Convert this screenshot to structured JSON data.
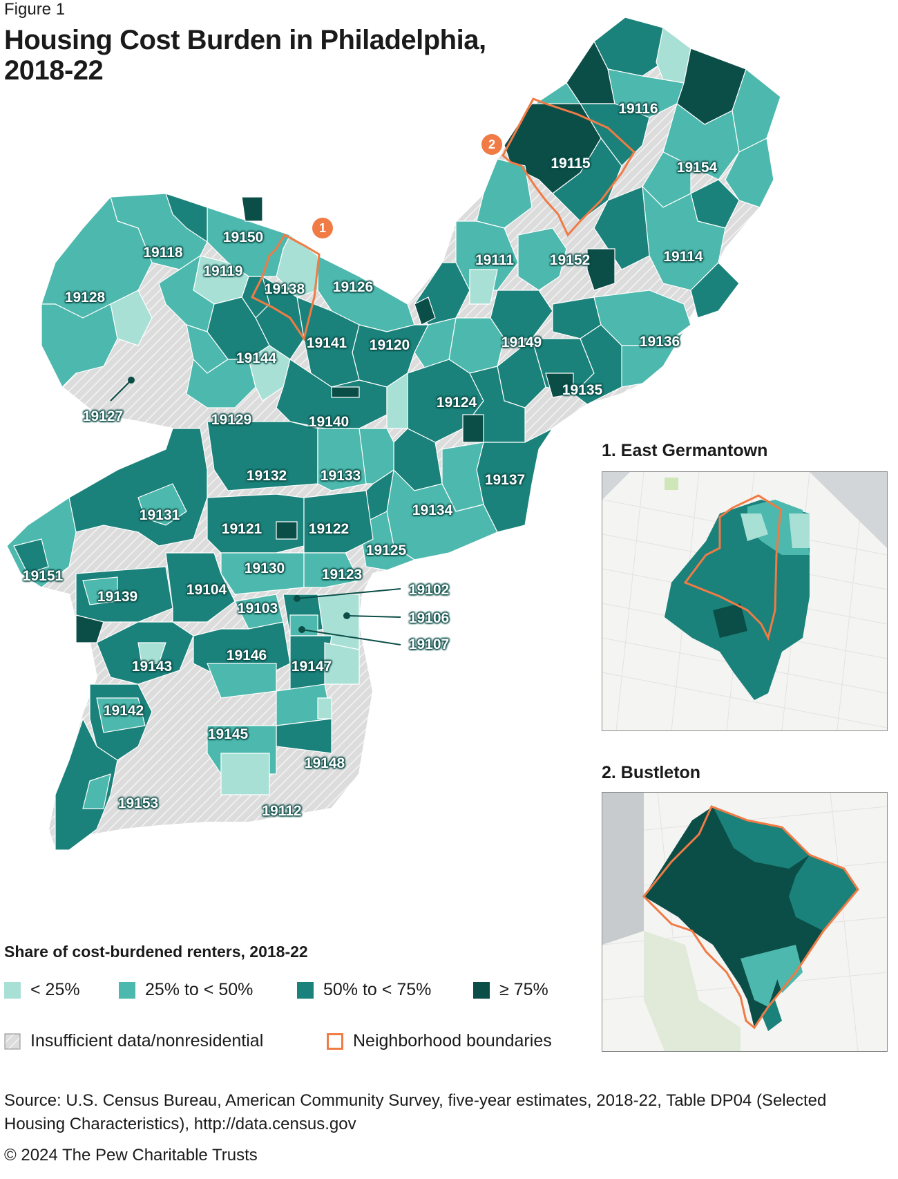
{
  "figure_label": "Figure 1",
  "title": "Housing Cost Burden in Philadelphia, 2018-22",
  "colors": {
    "lt25": "#a9e0d6",
    "25to50": "#4db8ad",
    "50to75": "#1a827a",
    "ge75": "#0b4d47",
    "insufficient": "#dcdcdc",
    "boundary": "#f07b45"
  },
  "markers": [
    "1",
    "2"
  ],
  "zip_labels": [
    "19116",
    "19115",
    "19154",
    "19150",
    "19118",
    "19119",
    "19138",
    "19126",
    "19111",
    "19152",
    "19114",
    "19128",
    "19141",
    "19120",
    "19149",
    "19136",
    "19144",
    "19135",
    "19124",
    "19127",
    "19129",
    "19140",
    "19137",
    "19132",
    "19133",
    "19131",
    "19134",
    "19121",
    "19122",
    "19125",
    "19151",
    "19130",
    "19123",
    "19102",
    "19139",
    "19104",
    "19103",
    "19106",
    "19107",
    "19146",
    "19147",
    "19143",
    "19142",
    "19145",
    "19148",
    "19153",
    "19112"
  ],
  "insets": [
    {
      "title": "1. East Germantown"
    },
    {
      "title": "2. Bustleton"
    }
  ],
  "legend": {
    "title": "Share of cost-burdened renters, 2018-22",
    "items": [
      {
        "label": "< 25%",
        "color": "#a9e0d6"
      },
      {
        "label": "25% to < 50%",
        "color": "#4db8ad"
      },
      {
        "label": "50% to < 75%",
        "color": "#1a827a"
      },
      {
        "label": "≥ 75%",
        "color": "#0b4d47"
      }
    ],
    "insufficient_label": "Insufficient data/nonresidential",
    "boundary_label": "Neighborhood boundaries"
  },
  "source": "Source: U.S. Census Bureau, American Community Survey, five-year estimates, 2018-22, Table DP04 (Selected Housing Characteristics), http://data.census.gov",
  "copyright": "© 2024 The Pew Charitable Trusts"
}
